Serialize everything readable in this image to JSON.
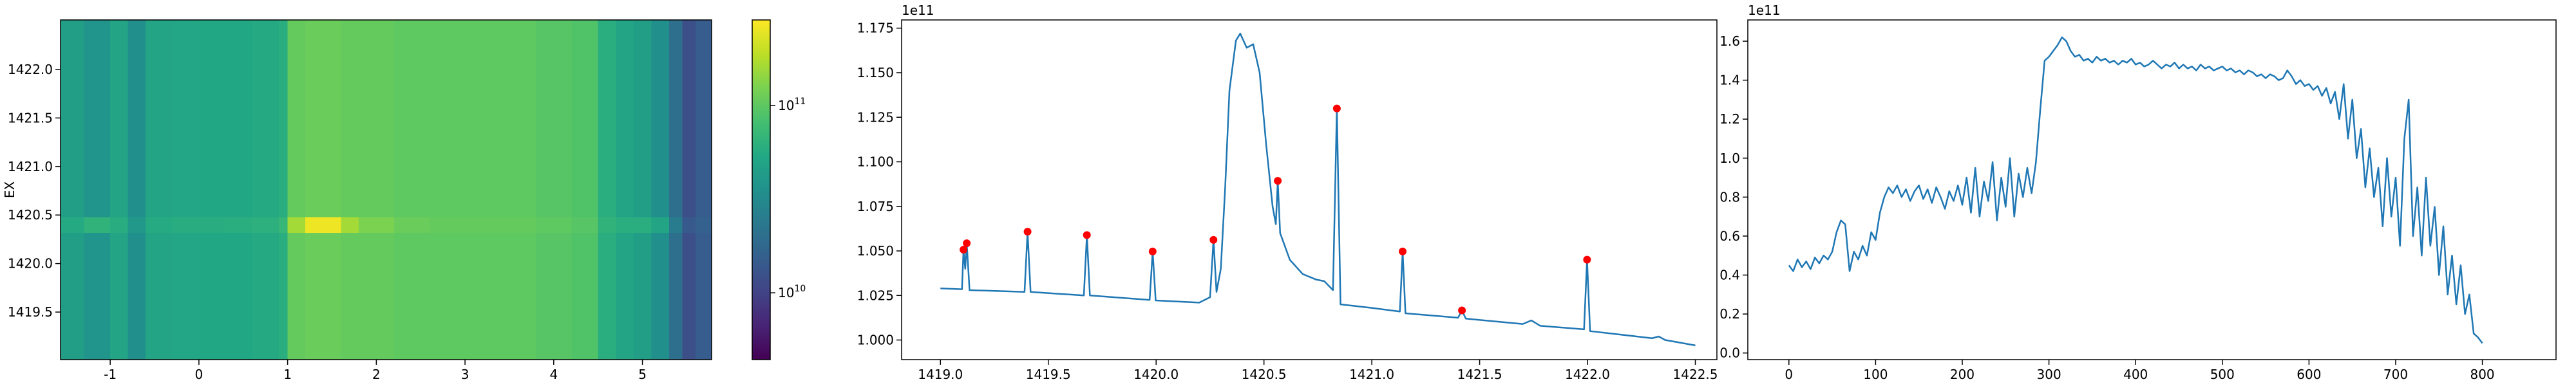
{
  "chart_data": [
    {
      "type": "heatmap",
      "ylabel": "EX",
      "xlim": [
        -1.56,
        5.78
      ],
      "xticks": [
        -1,
        0,
        1,
        2,
        3,
        4,
        5
      ],
      "ylim": [
        1419.01,
        1422.51
      ],
      "yticks": [
        {
          "value": 1419.5,
          "label": "1419.5"
        },
        {
          "value": 1420.0,
          "label": "1420.0"
        },
        {
          "value": 1420.5,
          "label": "1420.5"
        },
        {
          "value": 1421.0,
          "label": "1421.0"
        },
        {
          "value": 1421.5,
          "label": "1421.5"
        },
        {
          "value": 1422.0,
          "label": "1422.0"
        }
      ],
      "colormap": "viridis",
      "x_edges": [
        -1.56,
        -1.3,
        -1.0,
        -0.8,
        -0.6,
        -0.3,
        0,
        0.3,
        0.6,
        0.9,
        1.0,
        1.2,
        1.4,
        1.6,
        1.8,
        2.2,
        2.6,
        3.0,
        3.4,
        3.8,
        4.2,
        4.5,
        4.7,
        4.9,
        5.1,
        5.3,
        5.45,
        5.6,
        5.78
      ],
      "y_edges": [
        1419.01,
        1420.32,
        1420.48,
        1422.51
      ],
      "z": [
        [
          45000000000.0,
          38000000000.0,
          50000000000.0,
          35000000000.0,
          50000000000.0,
          52000000000.0,
          53000000000.0,
          53000000000.0,
          55000000000.0,
          60000000000.0,
          105000000000.0,
          110000000000.0,
          110000000000.0,
          105000000000.0,
          105000000000.0,
          100000000000.0,
          100000000000.0,
          100000000000.0,
          100000000000.0,
          95000000000.0,
          90000000000.0,
          60000000000.0,
          50000000000.0,
          45000000000.0,
          35000000000.0,
          20000000000.0,
          12000000000.0,
          15000000000.0
        ],
        [
          55000000000.0,
          65000000000.0,
          58000000000.0,
          40000000000.0,
          56000000000.0,
          58000000000.0,
          59000000000.0,
          60000000000.0,
          62000000000.0,
          70000000000.0,
          160000000000.0,
          260000000000.0,
          260000000000.0,
          160000000000.0,
          125000000000.0,
          110000000000.0,
          105000000000.0,
          105000000000.0,
          105000000000.0,
          100000000000.0,
          95000000000.0,
          65000000000.0,
          60000000000.0,
          60000000000.0,
          50000000000.0,
          25000000000.0,
          14000000000.0,
          16000000000.0
        ],
        [
          45000000000.0,
          38000000000.0,
          50000000000.0,
          35000000000.0,
          50000000000.0,
          52000000000.0,
          53000000000.0,
          53000000000.0,
          55000000000.0,
          60000000000.0,
          105000000000.0,
          110000000000.0,
          110000000000.0,
          105000000000.0,
          105000000000.0,
          100000000000.0,
          100000000000.0,
          100000000000.0,
          100000000000.0,
          95000000000.0,
          90000000000.0,
          60000000000.0,
          50000000000.0,
          45000000000.0,
          35000000000.0,
          20000000000.0,
          12000000000.0,
          15000000000.0
        ]
      ],
      "colorbar": {
        "scale": "log",
        "lim": [
          4400000000.0,
          286000000000.0
        ],
        "ticks": [
          {
            "value": 10000000000,
            "label": "10",
            "exponent": "10"
          },
          {
            "value": 100000000000,
            "label": "10",
            "exponent": "11"
          }
        ]
      }
    },
    {
      "type": "line",
      "y_offset_label": "1e11",
      "color": "#1f77b4",
      "xlim": [
        1418.82,
        1422.6
      ],
      "xticks": [
        {
          "value": 1419.0,
          "label": "1419.0"
        },
        1419.5,
        {
          "value": 1420.0,
          "label": "1420.0"
        },
        1420.5,
        {
          "value": 1421.0,
          "label": "1421.0"
        },
        1421.5,
        {
          "value": 1422.0,
          "label": "1422.0"
        },
        1422.5
      ],
      "ylim": [
        0.989,
        1.1796
      ],
      "yticks": [
        {
          "value": 1.0,
          "label": "1.000"
        },
        1.025,
        {
          "value": 1.05,
          "label": "1.050"
        },
        1.075,
        {
          "value": 1.1,
          "label": "1.100"
        },
        1.125,
        {
          "value": 1.15,
          "label": "1.150"
        },
        1.175
      ],
      "x": [
        1419.0,
        1419.1,
        1419.107,
        1419.115,
        1419.122,
        1419.135,
        1419.39,
        1419.404,
        1419.418,
        1419.665,
        1419.679,
        1419.693,
        1419.97,
        1419.984,
        1419.998,
        1420.2,
        1420.25,
        1420.266,
        1420.28,
        1420.3,
        1420.32,
        1420.34,
        1420.37,
        1420.39,
        1420.42,
        1420.45,
        1420.48,
        1420.51,
        1420.54,
        1420.555,
        1420.564,
        1420.575,
        1420.62,
        1420.68,
        1420.74,
        1420.78,
        1420.82,
        1420.838,
        1420.855,
        1421.0,
        1421.13,
        1421.143,
        1421.156,
        1421.4,
        1421.418,
        1421.436,
        1421.7,
        1421.74,
        1421.78,
        1421.984,
        1421.998,
        1422.012,
        1422.3,
        1422.33,
        1422.36,
        1422.5
      ],
      "values": [
        1.029,
        1.0285,
        1.0507,
        1.04,
        1.0543,
        1.028,
        1.027,
        1.0608,
        1.027,
        1.025,
        1.0589,
        1.025,
        1.0225,
        1.0497,
        1.0222,
        1.021,
        1.024,
        1.0562,
        1.027,
        1.04,
        1.085,
        1.14,
        1.168,
        1.172,
        1.164,
        1.166,
        1.15,
        1.11,
        1.075,
        1.065,
        1.0893,
        1.06,
        1.045,
        1.037,
        1.034,
        1.033,
        1.028,
        1.1299,
        1.02,
        1.018,
        1.016,
        1.0497,
        1.015,
        1.0125,
        1.0166,
        1.012,
        1.009,
        1.011,
        1.008,
        1.006,
        1.0451,
        1.005,
        1.001,
        1.002,
        1.0,
        0.997
      ],
      "peaks": {
        "color": "#ff0000",
        "x": [
          1419.107,
          1419.122,
          1419.404,
          1419.679,
          1419.984,
          1420.266,
          1420.564,
          1420.838,
          1421.143,
          1421.418,
          1421.998
        ],
        "values": [
          1.0507,
          1.0543,
          1.0608,
          1.0589,
          1.0497,
          1.0562,
          1.0893,
          1.1299,
          1.0497,
          1.0166,
          1.0451
        ]
      }
    },
    {
      "type": "line",
      "y_offset_label": "1e11",
      "color": "#1f77b4",
      "xlim": [
        -47.4,
        885
      ],
      "xticks": [
        0,
        100,
        200,
        300,
        400,
        500,
        600,
        700,
        800
      ],
      "ylim": [
        -0.034,
        1.709
      ],
      "yticks": [
        {
          "value": 0,
          "label": "0.0"
        },
        0.2,
        0.4,
        0.6,
        0.8,
        {
          "value": 1,
          "label": "1.0"
        },
        1.2,
        1.4,
        1.6
      ],
      "x": [
        0,
        5,
        10,
        15,
        20,
        25,
        30,
        35,
        40,
        45,
        50,
        55,
        60,
        65,
        70,
        75,
        80,
        85,
        90,
        95,
        100,
        105,
        110,
        115,
        120,
        125,
        130,
        135,
        140,
        145,
        150,
        155,
        160,
        165,
        170,
        175,
        180,
        185,
        190,
        195,
        200,
        205,
        210,
        215,
        220,
        225,
        230,
        235,
        240,
        245,
        250,
        255,
        260,
        265,
        270,
        275,
        280,
        285,
        290,
        295,
        300,
        305,
        310,
        315,
        320,
        325,
        330,
        335,
        340,
        345,
        350,
        355,
        360,
        365,
        370,
        375,
        380,
        385,
        390,
        395,
        400,
        405,
        410,
        415,
        420,
        425,
        430,
        435,
        440,
        445,
        450,
        455,
        460,
        465,
        470,
        475,
        480,
        485,
        490,
        495,
        500,
        505,
        510,
        515,
        520,
        525,
        530,
        535,
        540,
        545,
        550,
        555,
        560,
        565,
        570,
        575,
        580,
        585,
        590,
        595,
        600,
        605,
        610,
        615,
        620,
        625,
        630,
        635,
        640,
        645,
        650,
        655,
        660,
        665,
        670,
        675,
        680,
        685,
        690,
        695,
        700,
        705,
        710,
        715,
        720,
        725,
        730,
        735,
        740,
        745,
        750,
        755,
        760,
        765,
        770,
        775,
        780,
        785,
        790,
        795,
        800
      ],
      "values": [
        0.45,
        0.42,
        0.48,
        0.44,
        0.47,
        0.43,
        0.49,
        0.46,
        0.5,
        0.48,
        0.52,
        0.62,
        0.68,
        0.66,
        0.42,
        0.52,
        0.48,
        0.55,
        0.5,
        0.62,
        0.58,
        0.72,
        0.8,
        0.85,
        0.82,
        0.86,
        0.8,
        0.84,
        0.78,
        0.83,
        0.86,
        0.79,
        0.84,
        0.77,
        0.85,
        0.8,
        0.74,
        0.83,
        0.78,
        0.86,
        0.76,
        0.9,
        0.72,
        0.95,
        0.7,
        0.88,
        0.78,
        0.98,
        0.68,
        0.9,
        0.75,
        1.0,
        0.7,
        0.92,
        0.8,
        0.95,
        0.82,
        0.98,
        1.25,
        1.5,
        1.52,
        1.55,
        1.58,
        1.62,
        1.6,
        1.55,
        1.52,
        1.53,
        1.5,
        1.51,
        1.49,
        1.52,
        1.5,
        1.51,
        1.49,
        1.5,
        1.48,
        1.5,
        1.49,
        1.51,
        1.48,
        1.49,
        1.47,
        1.48,
        1.5,
        1.48,
        1.46,
        1.48,
        1.47,
        1.49,
        1.46,
        1.48,
        1.46,
        1.47,
        1.45,
        1.48,
        1.46,
        1.47,
        1.45,
        1.46,
        1.47,
        1.45,
        1.46,
        1.44,
        1.45,
        1.43,
        1.45,
        1.44,
        1.42,
        1.43,
        1.41,
        1.43,
        1.42,
        1.4,
        1.41,
        1.45,
        1.42,
        1.38,
        1.4,
        1.37,
        1.38,
        1.35,
        1.37,
        1.32,
        1.36,
        1.28,
        1.34,
        1.2,
        1.38,
        1.1,
        1.3,
        1.0,
        1.15,
        0.85,
        1.05,
        0.8,
        0.95,
        0.65,
        1.0,
        0.7,
        0.9,
        0.55,
        1.1,
        1.3,
        0.6,
        0.85,
        0.5,
        0.9,
        0.55,
        0.75,
        0.4,
        0.65,
        0.3,
        0.5,
        0.25,
        0.45,
        0.2,
        0.3,
        0.1,
        0.08,
        0.05
      ]
    }
  ]
}
